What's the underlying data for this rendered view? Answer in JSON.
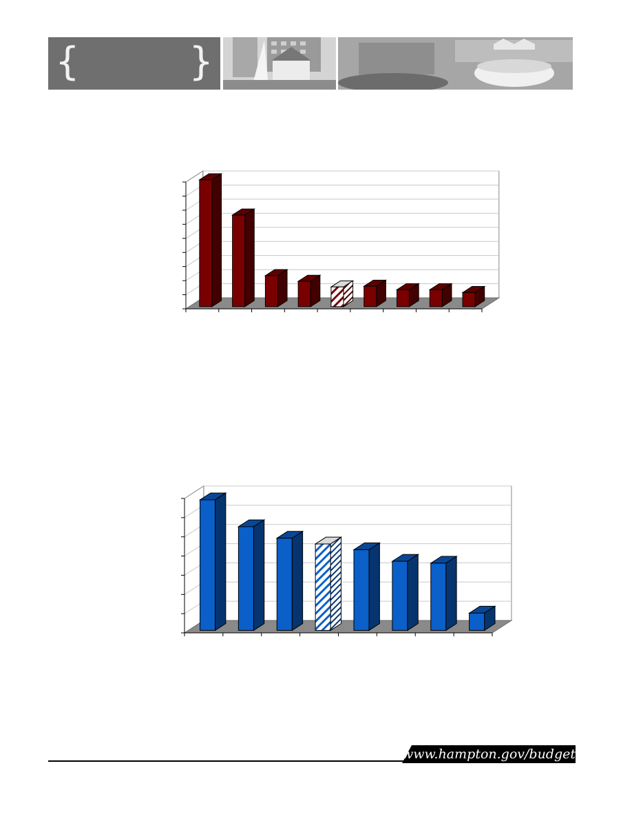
{
  "footer": {
    "url": "www.hampton.gov/budget"
  },
  "colors": {
    "chart1_bar": "#7a0000",
    "chart2_bar": "#0a5fc9",
    "floor": "#8a8a8a"
  },
  "chart_data": [
    {
      "type": "bar",
      "categories": [
        "",
        "",
        "",
        "",
        "",
        "",
        "",
        "",
        ""
      ],
      "values": [
        9.0,
        6.5,
        2.2,
        1.8,
        1.4,
        1.45,
        1.2,
        1.2,
        1.0
      ],
      "highlight_index": 4,
      "ylim": [
        0,
        9
      ],
      "grid": true
    },
    {
      "type": "bar",
      "categories": [
        "",
        "",
        "",
        "",
        "",
        "",
        "",
        ""
      ],
      "values": [
        6.8,
        5.4,
        4.8,
        4.5,
        4.2,
        3.6,
        3.5,
        0.9
      ],
      "highlight_index": 3,
      "ylim": [
        0,
        7
      ],
      "grid": true
    }
  ]
}
